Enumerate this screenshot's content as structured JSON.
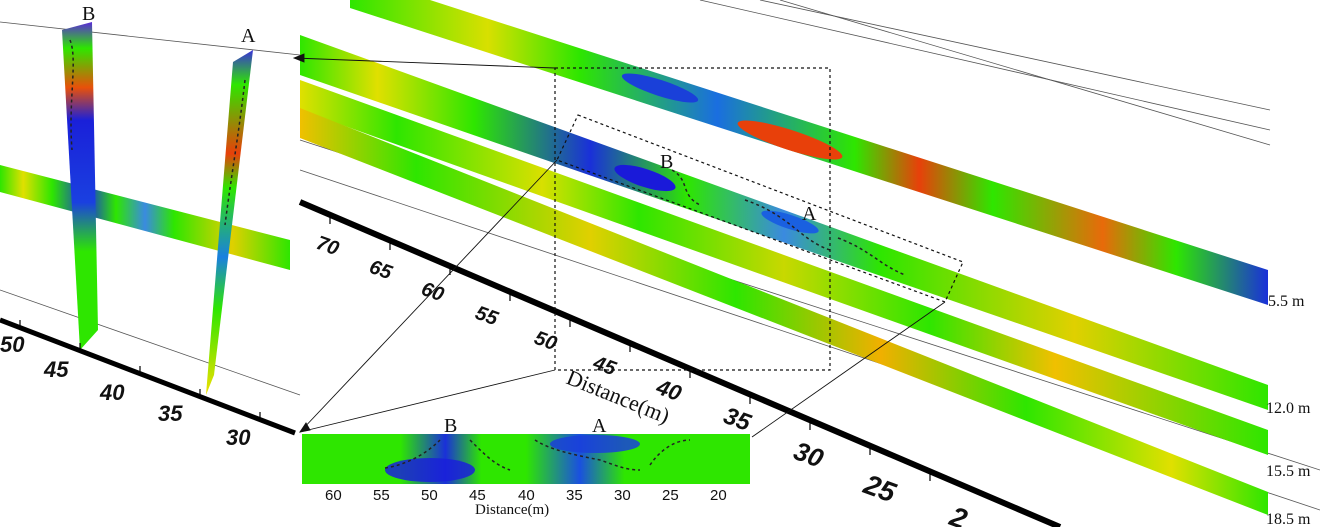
{
  "labels": {
    "point_b": "B",
    "point_a": "A"
  },
  "depth_labels": [
    "5.5 m",
    "12.0 m",
    "15.5 m",
    "18.5 m"
  ],
  "left_axis_ticks": [
    "50",
    "45",
    "40",
    "35",
    "30"
  ],
  "middle_axis_ticks": [
    "70",
    "65",
    "60",
    "55",
    "50",
    "45",
    "40",
    "35",
    "30",
    "25",
    "2"
  ],
  "middle_axis_title": "Distance(m)",
  "inset": {
    "ticks": [
      "60",
      "55",
      "50",
      "45",
      "40",
      "35",
      "30",
      "25",
      "20"
    ],
    "axis_title": "Distance(m)"
  },
  "colors": {
    "slice_green": "#2ee600",
    "low_blue": "#1a1ad9",
    "high_red": "#e8400a",
    "mid_yellow": "#f0e000",
    "axis_black": "#000000"
  }
}
